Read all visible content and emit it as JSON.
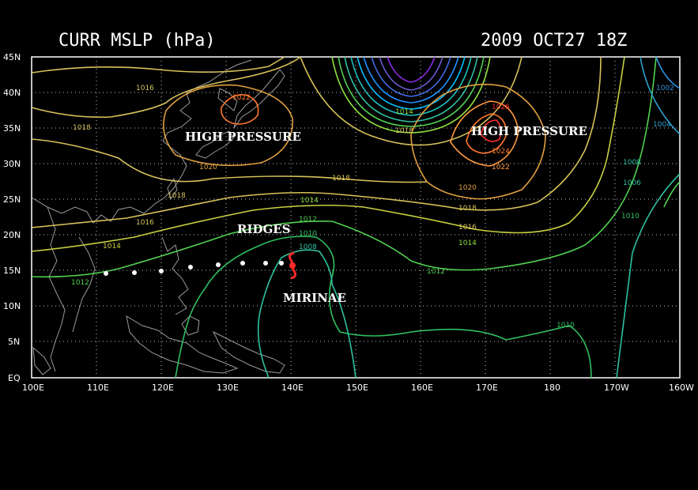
{
  "header": {
    "left_title": "CURR MSLP (hPa)",
    "right_title": "2009 OCT27 18Z"
  },
  "axes": {
    "lat_labels": [
      "45N",
      "40N",
      "35N",
      "30N",
      "25N",
      "20N",
      "15N",
      "10N",
      "5N",
      "EQ"
    ],
    "lon_labels": [
      "100E",
      "110E",
      "120E",
      "130E",
      "140E",
      "150E",
      "160E",
      "170E",
      "180",
      "170W",
      "160W"
    ]
  },
  "annotations": {
    "high_pressure_west": "HIGH PRESSURE",
    "high_pressure_east": "HIGH PRESSURE",
    "ridges": "RIDGES",
    "storm_name": "MIRINAE"
  },
  "contour_labels": [
    {
      "text": "1016",
      "color": "#d8c25a"
    },
    {
      "text": "1018",
      "color": "#d8c25a"
    },
    {
      "text": "1022",
      "color": "#ff7a2e"
    },
    {
      "text": "1020",
      "color": "#e0a040"
    },
    {
      "text": "1018",
      "color": "#d8c25a"
    },
    {
      "text": "1016",
      "color": "#d8c25a"
    },
    {
      "text": "1014",
      "color": "#c8d040"
    },
    {
      "text": "1012",
      "color": "#50d050"
    },
    {
      "text": "1014",
      "color": "#90e040"
    },
    {
      "text": "1012",
      "color": "#50d050"
    },
    {
      "text": "1010",
      "color": "#30c060"
    },
    {
      "text": "1008",
      "color": "#30c0a0"
    },
    {
      "text": "1014",
      "color": "#90e040"
    },
    {
      "text": "1018",
      "color": "#d8c25a"
    },
    {
      "text": "1018",
      "color": "#d8c25a"
    },
    {
      "text": "1026",
      "color": "#ff3030"
    },
    {
      "text": "1024",
      "color": "#ff7a2e"
    },
    {
      "text": "1022",
      "color": "#ff9a3e"
    },
    {
      "text": "1020",
      "color": "#e0a040"
    },
    {
      "text": "1018",
      "color": "#d8c25a"
    },
    {
      "text": "1016",
      "color": "#d8c25a"
    },
    {
      "text": "1014",
      "color": "#90e040"
    },
    {
      "text": "1012",
      "color": "#50d050"
    },
    {
      "text": "1010",
      "color": "#30c060"
    },
    {
      "text": "1008",
      "color": "#30c0a0"
    },
    {
      "text": "1006",
      "color": "#30c0a0"
    },
    {
      "text": "1004",
      "color": "#30a0d0"
    },
    {
      "text": "1002",
      "color": "#3090e0"
    },
    {
      "text": "1010",
      "color": "#30c060"
    }
  ],
  "colors": {
    "background": "#000000",
    "grid": "#ffffff",
    "coastline": "#9a9a9a",
    "storm_symbol": "#ff2a2a",
    "track_points": "#ffffff"
  },
  "storm_symbol": "tropical-cyclone-icon",
  "track": {
    "point_count": 8
  }
}
